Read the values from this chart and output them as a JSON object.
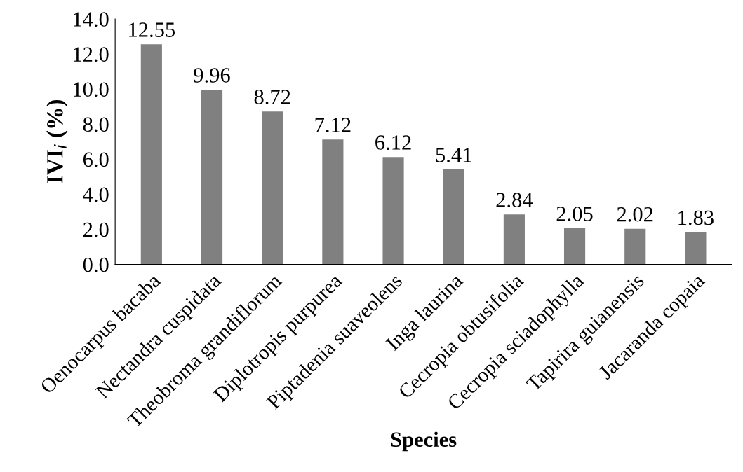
{
  "chart_data": {
    "type": "bar",
    "xlabel": "Species",
    "ylabel": "IVI$_{i}$ (%)",
    "categories": [
      "Oenocarpus bacaba",
      "Nectandra cuspidata",
      "Theobroma grandiflorum",
      "Diplotropis purpurea",
      "Piptadenia suaveolens",
      "Inga laurina",
      "Cecropia obtusifolia",
      "Cecropia sciadophylla",
      "Tapirira guianensis",
      "Jacaranda copaia"
    ],
    "values": [
      12.55,
      9.96,
      8.72,
      7.12,
      6.12,
      5.41,
      2.84,
      2.05,
      2.02,
      1.83
    ],
    "color": "#808080",
    "ylim": [
      0,
      14
    ],
    "yticks": [
      {
        "value": 0,
        "label": "0.0"
      },
      {
        "value": 2,
        "label": "2.0"
      },
      {
        "value": 4,
        "label": "4.0"
      },
      {
        "value": 6,
        "label": "6.0"
      },
      {
        "value": 8,
        "label": "8.0"
      },
      {
        "value": 10,
        "label": "10.0"
      },
      {
        "value": 12,
        "label": "12.0"
      },
      {
        "value": 14,
        "label": "14.0"
      }
    ],
    "data_labels": true,
    "grid": false,
    "legend": false
  }
}
